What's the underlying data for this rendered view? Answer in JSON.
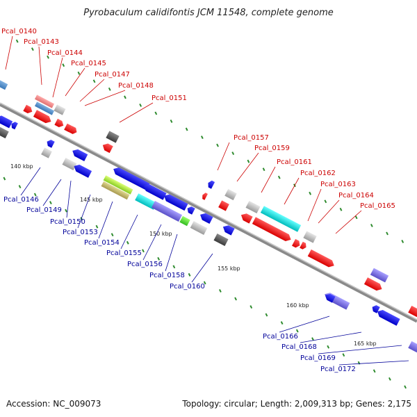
{
  "title": "Pyrobaculum calidifontis JCM 11548, complete genome",
  "footer": {
    "accession": "Accession: NC_009073",
    "topology": "Topology: circular; Length: 2,009,313 bp; Genes: 2,175"
  },
  "scale_ticks": [
    "140 kbp",
    "145 kbp",
    "150 kbp",
    "155 kbp",
    "160 kbp",
    "165 kbp"
  ],
  "gene_labels_top": [
    "Pcal_0140",
    "Pcal_0143",
    "Pcal_0144",
    "Pcal_0145",
    "Pcal_0147",
    "Pcal_0148",
    "Pcal_0151",
    "Pcal_0157",
    "Pcal_0159",
    "Pcal_0161",
    "Pcal_0162",
    "Pcal_0163",
    "Pcal_0164",
    "Pcal_0165"
  ],
  "gene_labels_bottom": [
    "Pcal_0146",
    "Pcal_0149",
    "Pcal_0150",
    "Pcal_0153",
    "Pcal_0154",
    "Pcal_0155",
    "Pcal_0156",
    "Pcal_0158",
    "Pcal_0160",
    "Pcal_0166",
    "Pcal_0168",
    "Pcal_0169",
    "Pcal_0172"
  ],
  "colors": {
    "forward_label": "#cc0000",
    "reverse_label": "#000099",
    "backbone": "#8a8a8a",
    "tick": "#2e8b2e"
  }
}
